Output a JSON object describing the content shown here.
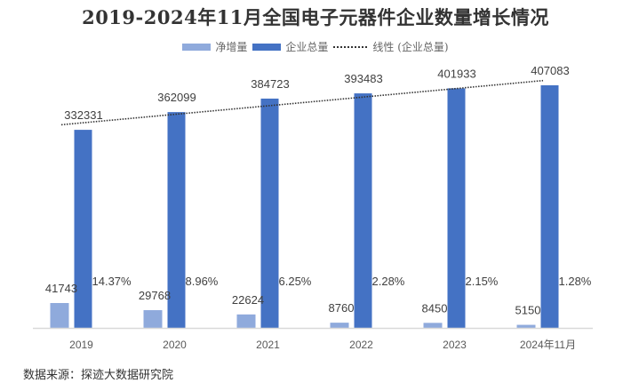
{
  "chart_data": {
    "type": "bar",
    "title": "2019-2024年11月全国电子元器件企业数量增长情况",
    "categories": [
      "2019",
      "2020",
      "2021",
      "2022",
      "2023",
      "2024年11月"
    ],
    "series": [
      {
        "name": "净增量",
        "color": "#8faadc",
        "values": [
          41743,
          29768,
          22624,
          8760,
          8450,
          5150
        ]
      },
      {
        "name": "企业总量",
        "color": "#4472c4",
        "values": [
          332331,
          362099,
          384723,
          393483,
          401933,
          407083
        ]
      }
    ],
    "growth_rate_labels": [
      "14.37%",
      "8.96%",
      "6.25%",
      "2.28%",
      "2.15%",
      "1.28%"
    ],
    "trendline": {
      "name": "线性 (企业总量)",
      "of_series": "企业总量",
      "kind": "linear"
    },
    "ylim": [
      0,
      410000
    ],
    "xlabel": "",
    "ylabel": "",
    "grid": false,
    "legend_position": "top"
  },
  "legend": {
    "net": "净增量",
    "total": "企业总量",
    "trend": "线性 (企业总量)"
  },
  "source": "数据来源：探迹大数据研究院"
}
